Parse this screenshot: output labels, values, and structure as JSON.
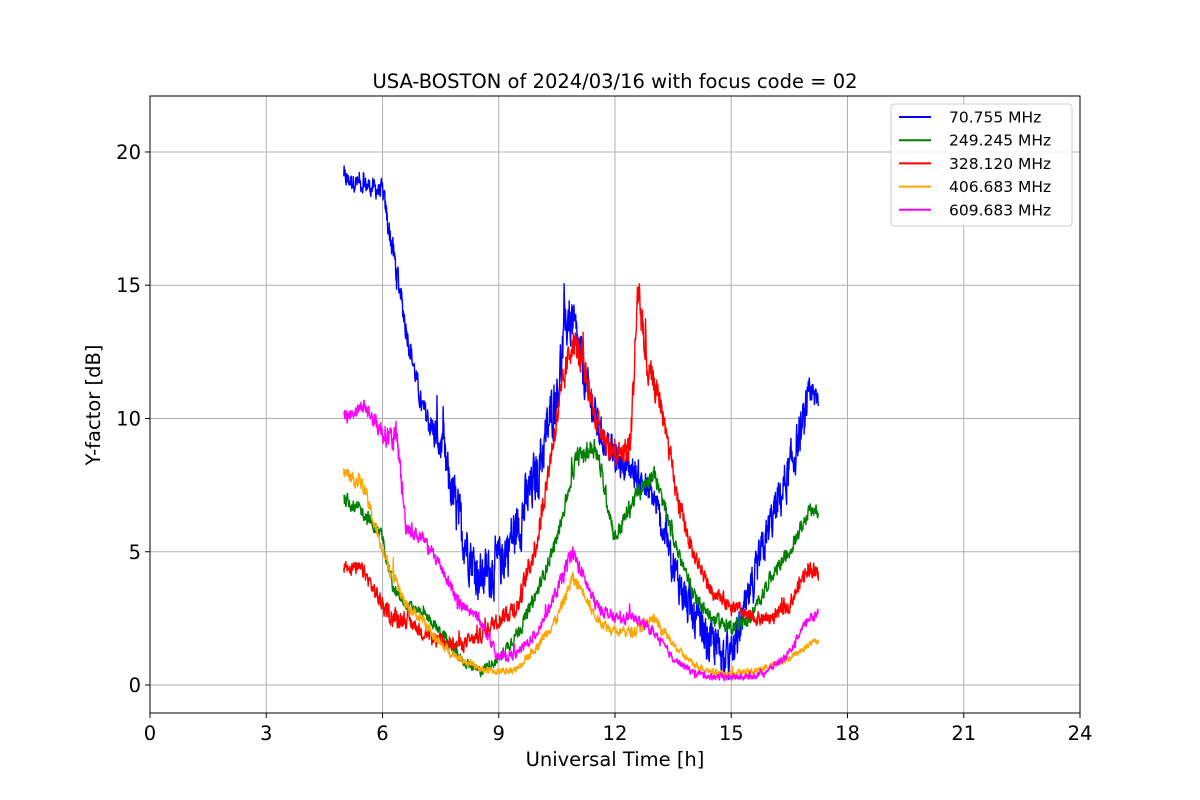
{
  "chart_data": {
    "type": "line",
    "title": "USA-BOSTON of 2024/03/16 with focus code = 02",
    "xlabel": "Universal Time [h]",
    "ylabel": "Y-factor [dB]",
    "xlim": [
      0,
      24
    ],
    "ylim": [
      -1.05,
      22.1
    ],
    "xticks": [
      0,
      3,
      6,
      9,
      12,
      15,
      18,
      21,
      24
    ],
    "yticks": [
      0,
      5,
      10,
      15,
      20
    ],
    "grid": true,
    "legend_position": "top-right",
    "series": [
      {
        "name": " 70.755 MHz",
        "color": "#0000ff",
        "x": [
          5.0,
          5.5,
          6.0,
          6.3,
          6.6,
          7.0,
          7.5,
          8.0,
          8.5,
          9.0,
          9.5,
          10.0,
          10.5,
          10.8,
          11.0,
          11.3,
          11.6,
          12.0,
          12.5,
          13.0,
          13.5,
          14.0,
          14.5,
          15.0,
          15.5,
          16.0,
          16.5,
          17.0,
          17.25
        ],
        "y": [
          19.0,
          18.8,
          18.5,
          16.0,
          13.5,
          10.5,
          9.0,
          6.0,
          4.0,
          4.5,
          6.0,
          8.0,
          11.0,
          14.0,
          13.0,
          11.0,
          9.5,
          8.5,
          8.0,
          7.0,
          4.5,
          2.5,
          1.5,
          1.0,
          3.5,
          6.0,
          8.0,
          10.5,
          11.0
        ],
        "amp": [
          0.5,
          0.5,
          0.6,
          1.0,
          0.8,
          0.6,
          1.2,
          1.6,
          1.4,
          1.6,
          1.6,
          1.6,
          1.6,
          1.6,
          1.4,
          1.2,
          1.0,
          0.9,
          0.9,
          0.9,
          1.1,
          1.3,
          1.3,
          1.2,
          1.1,
          1.2,
          1.3,
          1.2,
          1.0
        ]
      },
      {
        "name": "249.245 MHz",
        "color": "#008000",
        "x": [
          5.0,
          5.5,
          6.0,
          6.3,
          6.6,
          7.0,
          7.5,
          8.0,
          8.5,
          9.0,
          9.5,
          10.0,
          10.5,
          11.0,
          11.5,
          12.0,
          12.5,
          13.0,
          13.5,
          14.0,
          14.5,
          15.0,
          15.5,
          16.0,
          16.5,
          17.0,
          17.25
        ],
        "y": [
          7.0,
          6.5,
          5.5,
          3.5,
          3.0,
          2.8,
          2.0,
          1.0,
          0.5,
          1.0,
          2.0,
          3.5,
          5.5,
          8.5,
          9.0,
          5.5,
          7.0,
          8.0,
          5.5,
          3.5,
          2.5,
          2.2,
          2.5,
          4.0,
          5.0,
          6.5,
          6.5
        ],
        "amp": [
          0.4,
          0.4,
          0.4,
          0.4,
          0.3,
          0.3,
          0.3,
          0.3,
          0.3,
          0.3,
          0.4,
          0.4,
          0.4,
          0.5,
          0.6,
          0.5,
          0.5,
          0.5,
          0.4,
          0.4,
          0.4,
          0.4,
          0.4,
          0.4,
          0.4,
          0.4,
          0.4
        ]
      },
      {
        "name": "328.120 MHz",
        "color": "#ff0000",
        "x": [
          5.0,
          5.5,
          6.0,
          6.3,
          6.6,
          7.0,
          7.5,
          8.0,
          8.5,
          9.0,
          9.5,
          10.0,
          10.5,
          10.9,
          11.2,
          11.5,
          12.0,
          12.4,
          12.6,
          12.8,
          13.2,
          13.6,
          14.0,
          14.5,
          15.0,
          15.5,
          16.0,
          16.5,
          17.0,
          17.25
        ],
        "y": [
          4.5,
          4.3,
          3.0,
          2.5,
          2.5,
          2.0,
          1.6,
          1.5,
          1.8,
          2.5,
          3.0,
          5.5,
          10.0,
          13.0,
          12.0,
          10.0,
          8.5,
          9.0,
          15.0,
          12.0,
          10.5,
          7.0,
          5.0,
          3.5,
          3.0,
          2.5,
          2.5,
          3.0,
          4.5,
          4.0
        ],
        "amp": [
          0.4,
          0.4,
          0.5,
          0.6,
          0.5,
          0.4,
          0.4,
          0.4,
          0.4,
          0.5,
          0.6,
          0.7,
          0.8,
          1.0,
          0.9,
          0.8,
          0.7,
          0.9,
          1.5,
          0.9,
          0.7,
          0.6,
          0.5,
          0.4,
          0.4,
          0.4,
          0.4,
          0.4,
          0.5,
          0.5
        ]
      },
      {
        "name": "406.683 MHz",
        "color": "#ffa500",
        "x": [
          5.0,
          5.5,
          6.0,
          6.3,
          6.6,
          7.0,
          7.5,
          8.0,
          8.5,
          9.0,
          9.5,
          10.0,
          10.5,
          10.9,
          11.2,
          11.5,
          12.0,
          12.5,
          13.0,
          13.5,
          14.0,
          14.5,
          15.0,
          15.5,
          16.0,
          16.5,
          17.0,
          17.25
        ],
        "y": [
          8.0,
          7.5,
          5.0,
          4.0,
          3.0,
          2.5,
          1.5,
          1.0,
          0.6,
          0.5,
          0.6,
          1.5,
          2.5,
          4.0,
          3.5,
          2.5,
          2.0,
          2.0,
          2.5,
          1.5,
          0.8,
          0.5,
          0.4,
          0.5,
          0.7,
          1.0,
          1.5,
          1.7
        ],
        "amp": [
          0.4,
          0.4,
          0.4,
          0.4,
          0.3,
          0.3,
          0.3,
          0.2,
          0.2,
          0.2,
          0.2,
          0.3,
          0.3,
          0.4,
          0.3,
          0.3,
          0.3,
          0.3,
          0.3,
          0.2,
          0.2,
          0.2,
          0.2,
          0.2,
          0.2,
          0.2,
          0.2,
          0.2
        ]
      },
      {
        "name": "609.683 MHz",
        "color": "#ff00ff",
        "x": [
          5.0,
          5.5,
          6.0,
          6.4,
          6.6,
          7.0,
          7.5,
          8.0,
          8.5,
          9.0,
          9.5,
          10.0,
          10.5,
          10.9,
          11.2,
          11.5,
          12.0,
          12.5,
          13.0,
          13.5,
          14.0,
          14.5,
          15.0,
          15.5,
          16.0,
          16.5,
          17.0,
          17.25
        ],
        "y": [
          10.0,
          10.5,
          9.5,
          9.0,
          6.0,
          5.5,
          4.5,
          3.0,
          2.5,
          1.0,
          1.2,
          2.0,
          3.5,
          5.0,
          4.0,
          3.0,
          2.5,
          2.5,
          2.0,
          1.0,
          0.5,
          0.3,
          0.3,
          0.3,
          0.6,
          1.2,
          2.5,
          2.7
        ],
        "amp": [
          0.4,
          0.4,
          0.6,
          0.8,
          0.5,
          0.4,
          0.4,
          0.4,
          0.3,
          0.3,
          0.3,
          0.3,
          0.4,
          0.5,
          0.4,
          0.4,
          0.3,
          0.3,
          0.3,
          0.2,
          0.2,
          0.2,
          0.2,
          0.2,
          0.2,
          0.2,
          0.3,
          0.3
        ]
      }
    ]
  }
}
